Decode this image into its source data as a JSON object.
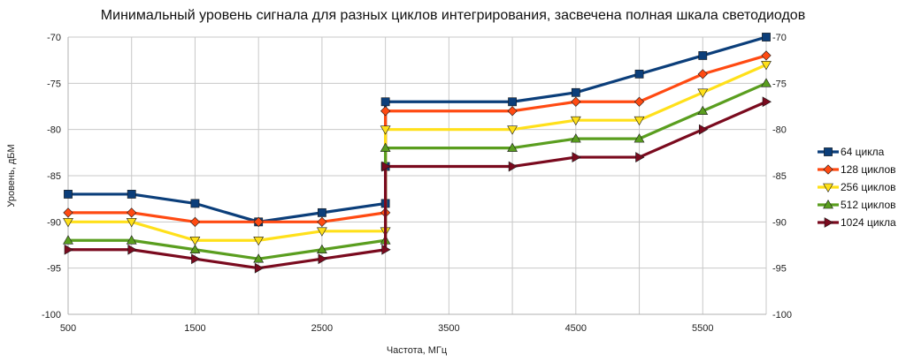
{
  "chart_data": {
    "type": "line",
    "title": "Минимальный уровень сигнала для разных циклов интегрирования, засвечена полная шкала светодиодов",
    "xlabel": "Частота, МГц",
    "ylabel": "Уровень, дБМ",
    "xlim": [
      500,
      6000
    ],
    "ylim": [
      -100,
      -70
    ],
    "x_ticks": [
      "500",
      "1500",
      "2500",
      "3500",
      "4500",
      "5500"
    ],
    "x_tick_values": [
      500,
      1500,
      2500,
      3500,
      4500,
      5500
    ],
    "y_ticks_left": [
      "-70",
      "-75",
      "-80",
      "-85",
      "-90",
      "-95",
      "-100"
    ],
    "y_ticks_right": [
      "-70",
      "-75",
      "-80",
      "-85",
      "-90",
      "-95",
      "-100"
    ],
    "y_tick_values": [
      -70,
      -75,
      -80,
      -85,
      -90,
      -95,
      -100
    ],
    "x_grid_values": [
      500,
      1000,
      1500,
      2000,
      2500,
      3000,
      3500,
      4000,
      4500,
      5000,
      5500,
      6000
    ],
    "grid": true,
    "legend_position": "right",
    "series": [
      {
        "name": "64 цикла",
        "color": "#0b3e7a",
        "marker": "square",
        "points": [
          [
            500,
            -87
          ],
          [
            1000,
            -87
          ],
          [
            1500,
            -88
          ],
          [
            2000,
            -90
          ],
          [
            2500,
            -89
          ],
          [
            3000,
            -88
          ],
          [
            3000,
            -84
          ],
          [
            3000,
            -77
          ],
          [
            4000,
            -77
          ],
          [
            4500,
            -76
          ],
          [
            5000,
            -74
          ],
          [
            5500,
            -72
          ],
          [
            6000,
            -70
          ]
        ]
      },
      {
        "name": "128 циклов",
        "color": "#ff4a12",
        "marker": "diamond",
        "points": [
          [
            500,
            -89
          ],
          [
            1000,
            -89
          ],
          [
            1500,
            -90
          ],
          [
            2000,
            -90
          ],
          [
            2500,
            -90
          ],
          [
            3000,
            -89
          ],
          [
            3000,
            -78
          ],
          [
            4000,
            -78
          ],
          [
            4500,
            -77
          ],
          [
            5000,
            -77
          ],
          [
            5500,
            -74
          ],
          [
            6000,
            -72
          ]
        ]
      },
      {
        "name": "256 циклов",
        "color": "#ffe01a",
        "marker": "triangle-down",
        "points": [
          [
            500,
            -90
          ],
          [
            1000,
            -90
          ],
          [
            1500,
            -92
          ],
          [
            2000,
            -92
          ],
          [
            2500,
            -91
          ],
          [
            3000,
            -91
          ],
          [
            3000,
            -80
          ],
          [
            4000,
            -80
          ],
          [
            4500,
            -79
          ],
          [
            5000,
            -79
          ],
          [
            5500,
            -76
          ],
          [
            6000,
            -73
          ]
        ]
      },
      {
        "name": "512 циклов",
        "color": "#5a9e1f",
        "marker": "triangle-up",
        "points": [
          [
            500,
            -92
          ],
          [
            1000,
            -92
          ],
          [
            1500,
            -93
          ],
          [
            2000,
            -94
          ],
          [
            2500,
            -93
          ],
          [
            3000,
            -92
          ],
          [
            3000,
            -82
          ],
          [
            4000,
            -82
          ],
          [
            4500,
            -81
          ],
          [
            5000,
            -81
          ],
          [
            5500,
            -78
          ],
          [
            6000,
            -75
          ]
        ]
      },
      {
        "name": "1024 цикла",
        "color": "#7a0a1e",
        "marker": "triangle-right",
        "points": [
          [
            500,
            -93
          ],
          [
            1000,
            -93
          ],
          [
            1500,
            -94
          ],
          [
            2000,
            -95
          ],
          [
            2500,
            -94
          ],
          [
            3000,
            -93
          ],
          [
            3000,
            -84
          ],
          [
            4000,
            -84
          ],
          [
            4500,
            -83
          ],
          [
            5000,
            -83
          ],
          [
            5500,
            -80
          ],
          [
            6000,
            -77
          ]
        ]
      }
    ]
  }
}
